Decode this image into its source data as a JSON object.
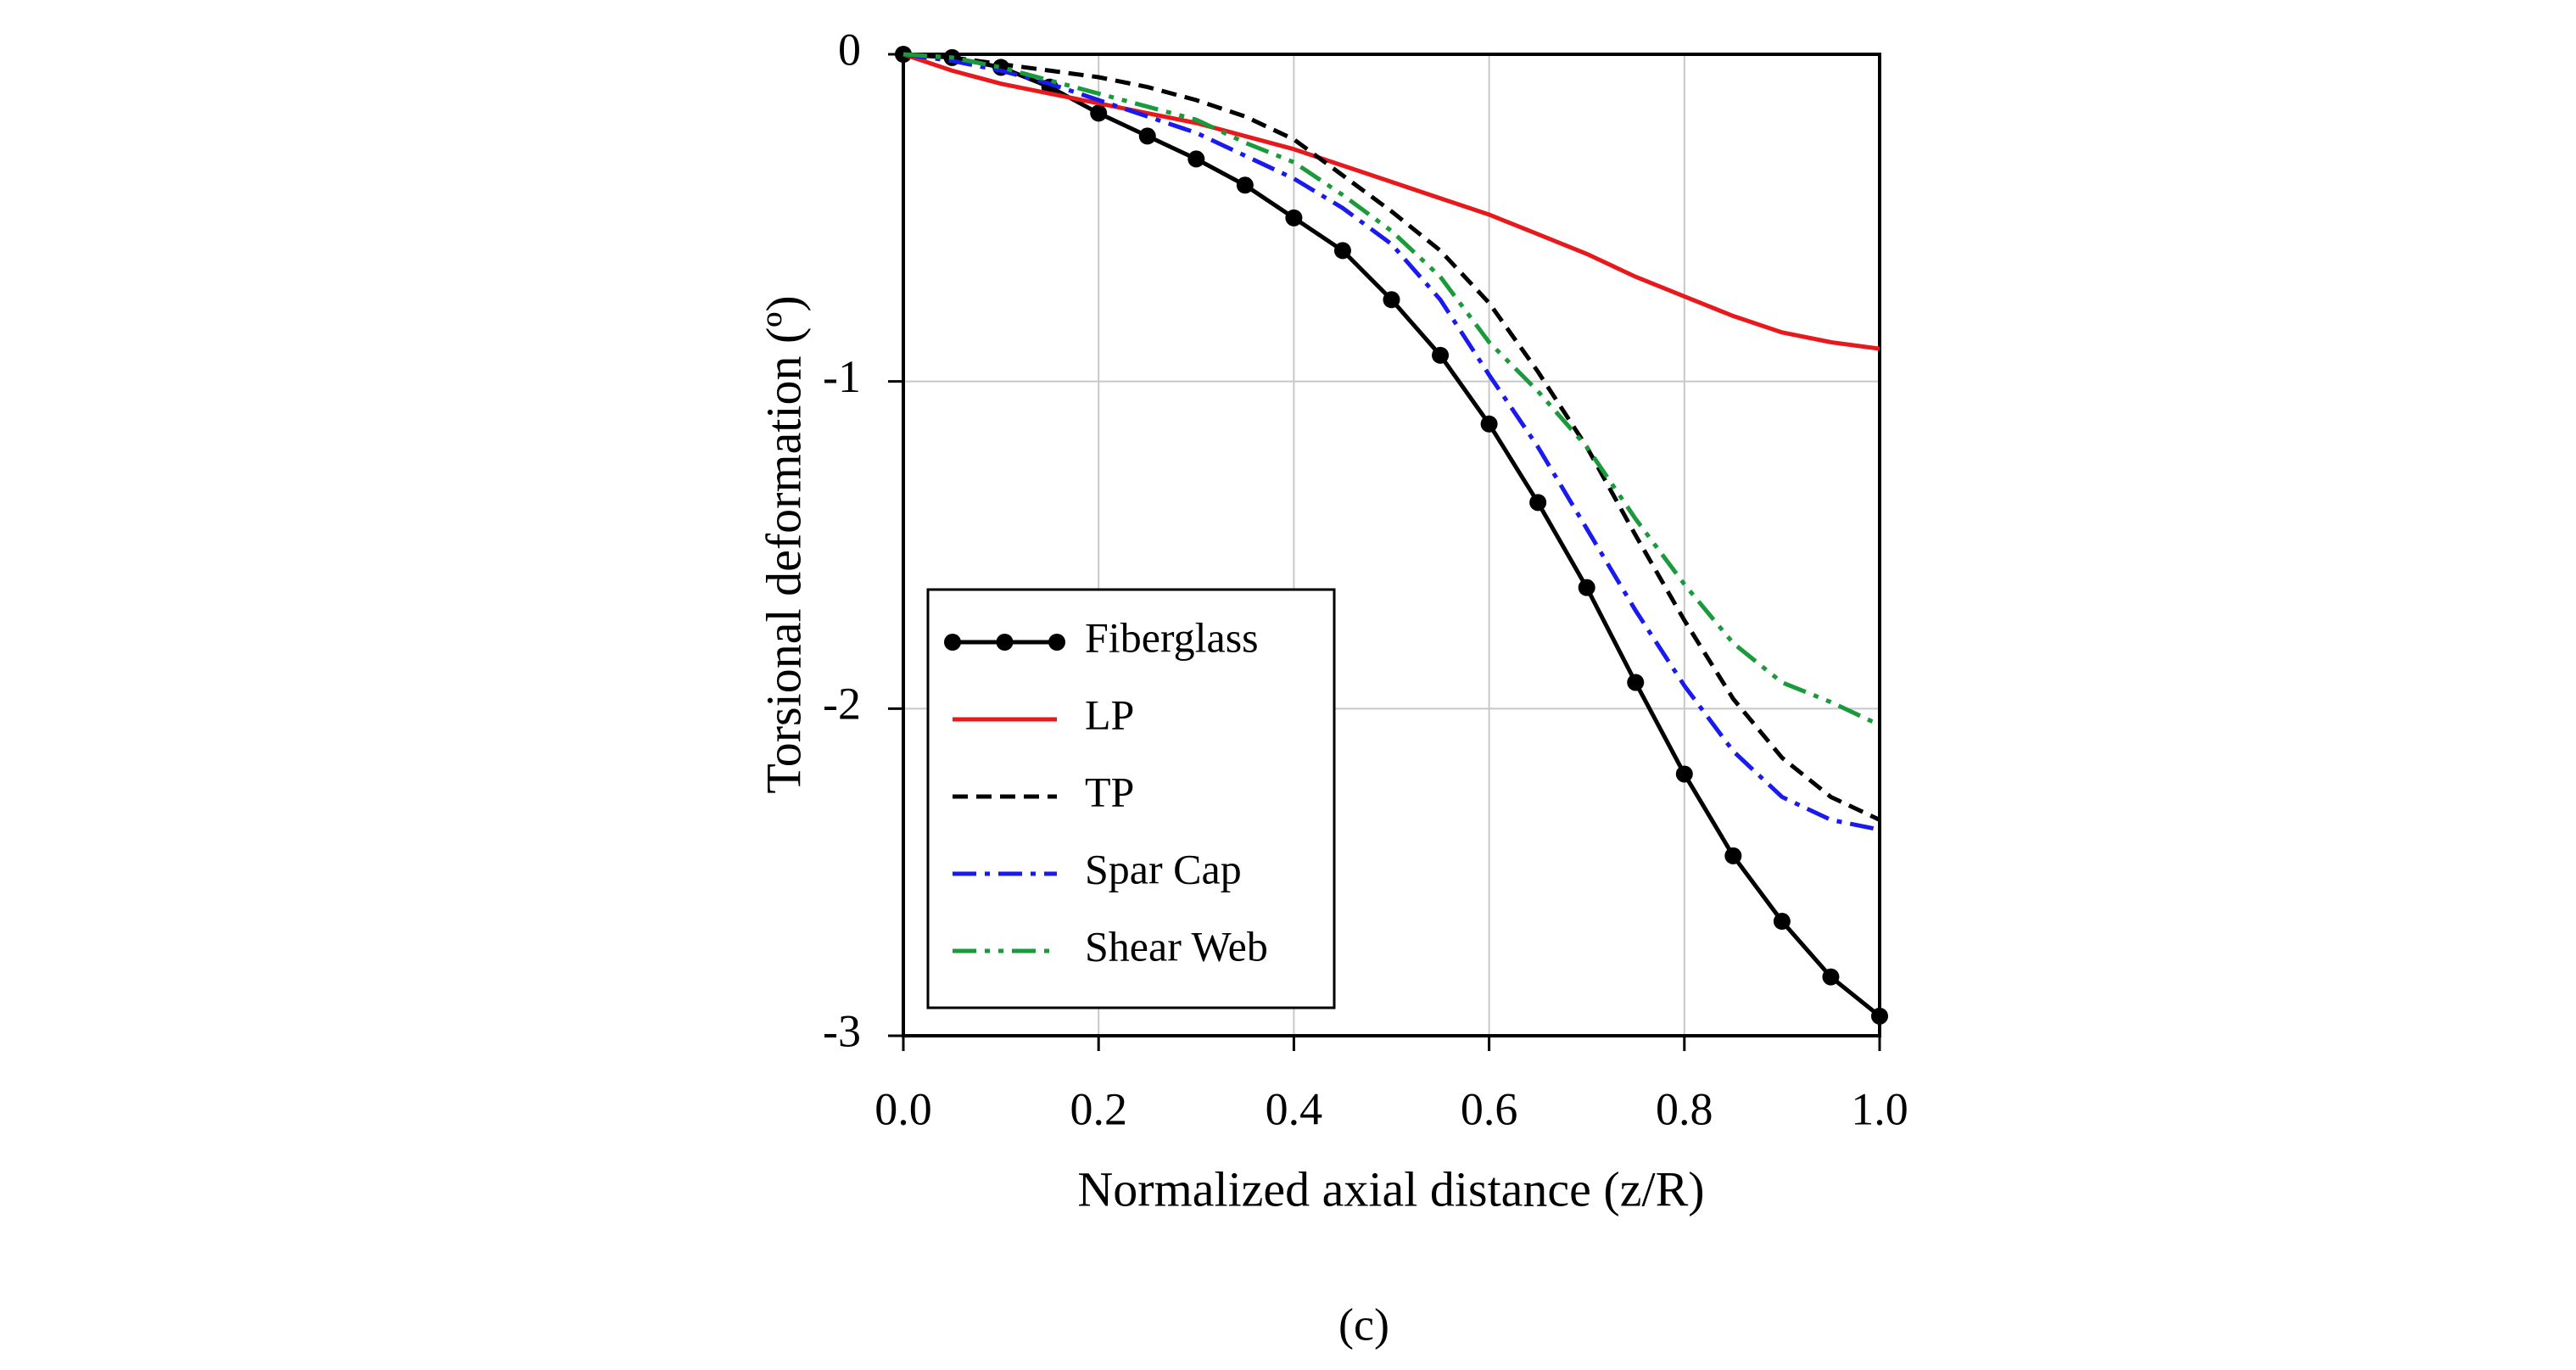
{
  "chart_data": {
    "type": "line",
    "xlabel": "Normalized axial distance (z/R)",
    "ylabel": "Torsional deformation (º)",
    "caption": "(c)",
    "x": [
      0,
      0.05,
      0.1,
      0.15,
      0.2,
      0.25,
      0.3,
      0.35,
      0.4,
      0.45,
      0.5,
      0.55,
      0.6,
      0.65,
      0.7,
      0.75,
      0.8,
      0.85,
      0.9,
      0.95,
      1.0
    ],
    "series": [
      {
        "name": "Fiberglass",
        "color": "#000000",
        "dash": "solid",
        "marker": "circle",
        "values": [
          0,
          -0.01,
          -0.04,
          -0.1,
          -0.18,
          -0.25,
          -0.32,
          -0.4,
          -0.5,
          -0.6,
          -0.75,
          -0.92,
          -1.13,
          -1.37,
          -1.63,
          -1.92,
          -2.2,
          -2.45,
          -2.65,
          -2.82,
          -2.94
        ]
      },
      {
        "name": "LP",
        "color": "#e8191c",
        "dash": "solid",
        "values": [
          0,
          -0.05,
          -0.09,
          -0.12,
          -0.15,
          -0.18,
          -0.21,
          -0.25,
          -0.29,
          -0.34,
          -0.39,
          -0.44,
          -0.49,
          -0.55,
          -0.61,
          -0.68,
          -0.74,
          -0.8,
          -0.85,
          -0.88,
          -0.9
        ]
      },
      {
        "name": "TP",
        "color": "#000000",
        "dash": "dash",
        "values": [
          0,
          -0.01,
          -0.03,
          -0.05,
          -0.07,
          -0.1,
          -0.14,
          -0.19,
          -0.26,
          -0.37,
          -0.48,
          -0.6,
          -0.76,
          -0.97,
          -1.2,
          -1.47,
          -1.73,
          -1.97,
          -2.15,
          -2.27,
          -2.34
        ]
      },
      {
        "name": "Spar Cap",
        "color": "#1a1aee",
        "dash": "dashdot",
        "values": [
          0,
          -0.02,
          -0.05,
          -0.09,
          -0.14,
          -0.19,
          -0.24,
          -0.31,
          -0.38,
          -0.47,
          -0.58,
          -0.75,
          -0.98,
          -1.2,
          -1.45,
          -1.7,
          -1.93,
          -2.13,
          -2.27,
          -2.34,
          -2.37
        ]
      },
      {
        "name": "Shear Web",
        "color": "#1a9a3a",
        "dash": "dashdotdot",
        "values": [
          0,
          -0.01,
          -0.04,
          -0.08,
          -0.12,
          -0.16,
          -0.2,
          -0.27,
          -0.33,
          -0.43,
          -0.54,
          -0.68,
          -0.88,
          -1.03,
          -1.2,
          -1.42,
          -1.62,
          -1.8,
          -1.92,
          -1.98,
          -2.05
        ]
      }
    ],
    "xlim": [
      0,
      1.0
    ],
    "xticks": [
      {
        "value": 0,
        "label": "0.0"
      },
      0.2,
      0.4,
      0.6,
      0.8,
      {
        "value": 1,
        "label": "1.0"
      }
    ],
    "ylim": [
      -3,
      0
    ],
    "yticks": [
      0,
      -1,
      -2,
      -3
    ],
    "grid": true,
    "legend": "lower left"
  }
}
